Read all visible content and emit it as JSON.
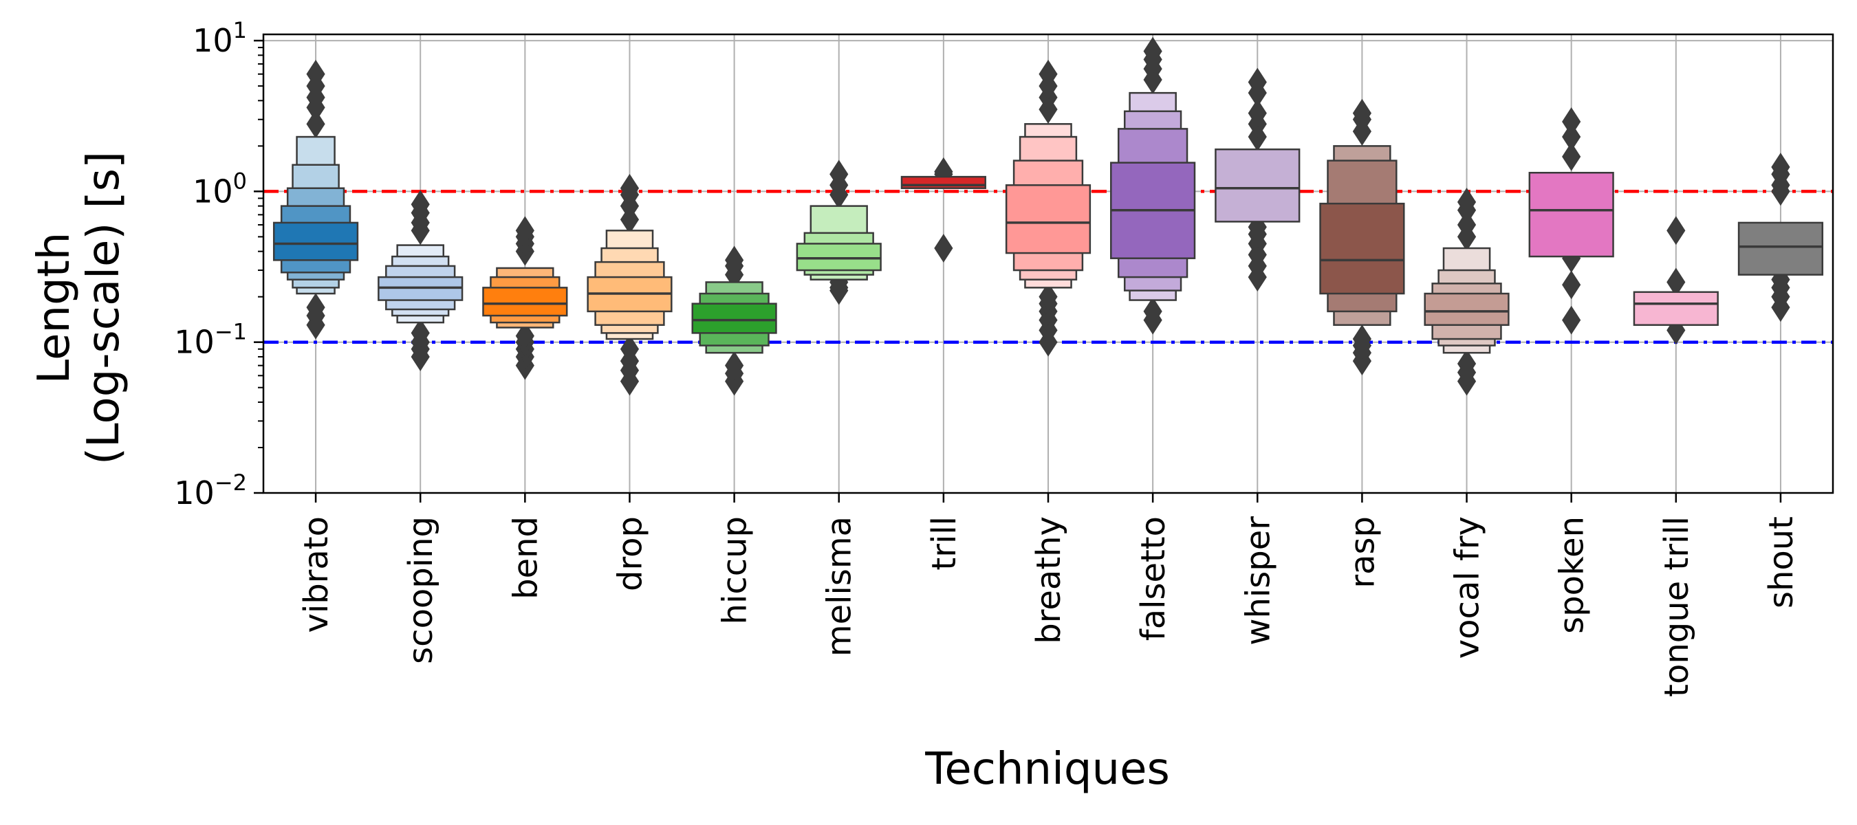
{
  "chart_data": {
    "type": "boxen",
    "title": "",
    "xlabel": "Techniques",
    "ylabel_lines": [
      "Length",
      "(Log-scale) [s]"
    ],
    "yscale": "log",
    "ylim": [
      0.01,
      11
    ],
    "yticks": [
      {
        "value": 0.01,
        "base": "10",
        "exp": "−2"
      },
      {
        "value": 0.1,
        "base": "10",
        "exp": "−1"
      },
      {
        "value": 1,
        "base": "10",
        "exp": "0"
      },
      {
        "value": 10,
        "base": "10",
        "exp": "1"
      }
    ],
    "grid": true,
    "reference_lines": [
      {
        "value": 1.0,
        "color": "#ff0000",
        "style": "dashdot"
      },
      {
        "value": 0.1,
        "color": "#0000ff",
        "style": "dashdot"
      }
    ],
    "categories": [
      "vibrato",
      "scooping",
      "bend",
      "drop",
      "hiccup",
      "melisma",
      "trill",
      "breathy",
      "falsetto",
      "whisper",
      "rasp",
      "vocal fry",
      "spoken",
      "tongue trill",
      "shout"
    ],
    "series": [
      {
        "name": "vibrato",
        "color": "#1f77b4",
        "median": 0.45,
        "boxes": [
          [
            0.35,
            0.62
          ],
          [
            0.29,
            0.8
          ],
          [
            0.26,
            1.05
          ],
          [
            0.23,
            1.5
          ],
          [
            0.21,
            2.3
          ]
        ],
        "outliers": [
          0.13,
          0.15,
          0.17,
          2.8,
          3.6,
          4.2,
          5.0,
          6.0
        ]
      },
      {
        "name": "scooping",
        "color": "#aec7e8",
        "median": 0.23,
        "boxes": [
          [
            0.19,
            0.27
          ],
          [
            0.165,
            0.32
          ],
          [
            0.15,
            0.37
          ],
          [
            0.135,
            0.44
          ]
        ],
        "outliers": [
          0.08,
          0.09,
          0.1,
          0.115,
          0.55,
          0.62,
          0.72,
          0.82
        ]
      },
      {
        "name": "bend",
        "color": "#ff7f0e",
        "median": 0.18,
        "boxes": [
          [
            0.15,
            0.23
          ],
          [
            0.135,
            0.27
          ],
          [
            0.125,
            0.31
          ]
        ],
        "outliers": [
          0.07,
          0.08,
          0.09,
          0.1,
          0.11,
          0.4,
          0.45,
          0.5,
          0.55
        ]
      },
      {
        "name": "drop",
        "color": "#ffbb78",
        "median": 0.21,
        "boxes": [
          [
            0.16,
            0.27
          ],
          [
            0.13,
            0.34
          ],
          [
            0.115,
            0.42
          ],
          [
            0.105,
            0.55
          ]
        ],
        "outliers": [
          0.055,
          0.065,
          0.075,
          0.09,
          0.65,
          0.8,
          0.95,
          1.05
        ]
      },
      {
        "name": "hiccup",
        "color": "#2ca02c",
        "median": 0.14,
        "boxes": [
          [
            0.115,
            0.18
          ],
          [
            0.095,
            0.21
          ],
          [
            0.085,
            0.25
          ]
        ],
        "outliers": [
          0.055,
          0.062,
          0.07,
          0.28,
          0.32,
          0.35
        ]
      },
      {
        "name": "melisma",
        "color": "#98df8a",
        "median": 0.36,
        "boxes": [
          [
            0.3,
            0.45
          ],
          [
            0.28,
            0.53
          ],
          [
            0.26,
            0.8
          ]
        ],
        "outliers": [
          0.22,
          0.23,
          0.25,
          0.95,
          1.1,
          1.3
        ]
      },
      {
        "name": "trill",
        "color": "#d62728",
        "median": 1.1,
        "boxes": [
          [
            1.05,
            1.25
          ]
        ],
        "outliers": [
          0.42,
          1.3,
          1.35
        ]
      },
      {
        "name": "breathy",
        "color": "#ff9896",
        "median": 0.62,
        "boxes": [
          [
            0.39,
            1.1
          ],
          [
            0.3,
            1.6
          ],
          [
            0.26,
            2.3
          ],
          [
            0.23,
            2.8
          ]
        ],
        "outliers": [
          0.1,
          0.12,
          0.14,
          0.16,
          0.18,
          0.2,
          3.5,
          4.2,
          5.0,
          6.0
        ]
      },
      {
        "name": "falsetto",
        "color": "#9467bd",
        "median": 0.75,
        "boxes": [
          [
            0.36,
            1.55
          ],
          [
            0.27,
            2.6
          ],
          [
            0.22,
            3.4
          ],
          [
            0.19,
            4.5
          ]
        ],
        "outliers": [
          0.14,
          0.16,
          5.5,
          6.5,
          7.5,
          8.5
        ]
      },
      {
        "name": "whisper",
        "color": "#c5b0d5",
        "median": 1.05,
        "boxes": [
          [
            0.63,
            1.9
          ]
        ],
        "outliers": [
          0.27,
          0.32,
          0.38,
          0.45,
          0.52,
          0.58,
          2.3,
          2.8,
          3.3,
          4.5,
          5.3
        ]
      },
      {
        "name": "rasp",
        "color": "#8c564b",
        "median": 0.35,
        "boxes": [
          [
            0.21,
            0.83
          ],
          [
            0.16,
            1.6
          ],
          [
            0.13,
            2.0
          ]
        ],
        "outliers": [
          0.075,
          0.085,
          0.095,
          0.105,
          2.5,
          3.0,
          3.3
        ]
      },
      {
        "name": "vocal fry",
        "color": "#c49c94",
        "median": 0.16,
        "boxes": [
          [
            0.13,
            0.21
          ],
          [
            0.105,
            0.245
          ],
          [
            0.095,
            0.3
          ],
          [
            0.085,
            0.42
          ]
        ],
        "outliers": [
          0.055,
          0.063,
          0.072,
          0.5,
          0.6,
          0.75,
          0.85
        ]
      },
      {
        "name": "spoken",
        "color": "#e377c2",
        "median": 0.75,
        "boxes": [
          [
            0.37,
            1.33
          ]
        ],
        "outliers": [
          0.14,
          0.24,
          0.36,
          1.7,
          2.3,
          2.9
        ]
      },
      {
        "name": "tongue trill",
        "color": "#f7b6d2",
        "median": 0.18,
        "boxes": [
          [
            0.13,
            0.215
          ]
        ],
        "outliers": [
          0.12,
          0.25,
          0.55
        ]
      },
      {
        "name": "shout",
        "color": "#7f7f7f",
        "median": 0.43,
        "boxes": [
          [
            0.28,
            0.62
          ]
        ],
        "outliers": [
          0.17,
          0.2,
          0.23,
          0.26,
          1.0,
          1.1,
          1.3,
          1.45
        ]
      }
    ]
  }
}
